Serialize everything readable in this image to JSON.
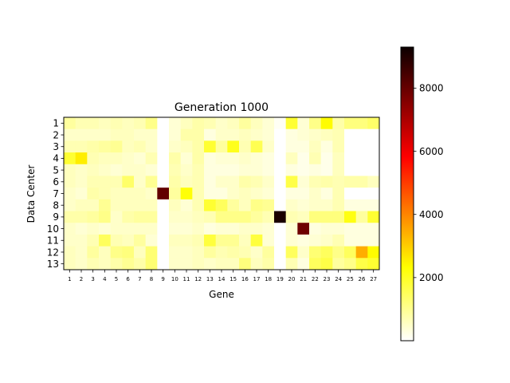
{
  "chart_data": {
    "type": "heatmap",
    "title": "Generation 1000",
    "xlabel": "Gene",
    "ylabel": "Data Center",
    "x_categories": [
      "1",
      "2",
      "3",
      "4",
      "5",
      "6",
      "7",
      "8",
      "9",
      "10",
      "11",
      "12",
      "13",
      "14",
      "15",
      "16",
      "17",
      "18",
      "19",
      "20",
      "21",
      "22",
      "23",
      "24",
      "25",
      "26",
      "27"
    ],
    "y_categories": [
      "1",
      "2",
      "3",
      "4",
      "5",
      "6",
      "7",
      "8",
      "9",
      "10",
      "11",
      "12",
      "13"
    ],
    "colormap": "hot_r",
    "vmin": 0,
    "vmax": 9300,
    "colorbar_ticks": [
      2000,
      4000,
      6000,
      8000
    ],
    "colorbar_tick_labels": [
      "2000",
      "4000",
      "6000",
      "8000"
    ],
    "values": [
      [
        900,
        700,
        700,
        600,
        700,
        600,
        700,
        1100,
        0,
        400,
        600,
        800,
        700,
        500,
        600,
        900,
        600,
        400,
        100,
        1900,
        400,
        1100,
        2400,
        800,
        1200,
        1200,
        1400
      ],
      [
        500,
        500,
        500,
        500,
        600,
        600,
        500,
        500,
        0,
        400,
        800,
        800,
        300,
        500,
        500,
        600,
        500,
        400,
        0,
        300,
        400,
        500,
        600,
        700,
        0,
        0,
        0
      ],
      [
        700,
        700,
        800,
        900,
        1000,
        600,
        700,
        500,
        0,
        500,
        600,
        800,
        1900,
        900,
        2100,
        700,
        1600,
        500,
        0,
        300,
        300,
        600,
        300,
        700,
        0,
        0,
        0
      ],
      [
        1900,
        2600,
        700,
        600,
        600,
        500,
        400,
        700,
        0,
        800,
        400,
        800,
        300,
        400,
        400,
        500,
        400,
        300,
        0,
        600,
        200,
        700,
        200,
        600,
        0,
        0,
        0
      ],
      [
        600,
        500,
        600,
        500,
        400,
        500,
        500,
        400,
        0,
        700,
        500,
        700,
        300,
        300,
        300,
        400,
        400,
        300,
        0,
        300,
        200,
        300,
        200,
        600,
        0,
        0,
        0
      ],
      [
        600,
        500,
        700,
        700,
        700,
        1400,
        500,
        1000,
        0,
        800,
        600,
        700,
        300,
        500,
        500,
        800,
        700,
        500,
        0,
        1700,
        400,
        700,
        800,
        700,
        800,
        800,
        600
      ],
      [
        500,
        400,
        800,
        700,
        600,
        600,
        600,
        500,
        8200,
        900,
        2300,
        700,
        300,
        300,
        500,
        600,
        500,
        400,
        0,
        300,
        300,
        500,
        300,
        700,
        0,
        0,
        0
      ],
      [
        500,
        600,
        600,
        1000,
        600,
        600,
        600,
        600,
        0,
        600,
        400,
        700,
        1900,
        1500,
        900,
        600,
        1100,
        1000,
        0,
        500,
        400,
        500,
        500,
        700,
        300,
        300,
        300
      ],
      [
        800,
        800,
        900,
        1100,
        500,
        800,
        900,
        900,
        0,
        500,
        500,
        600,
        700,
        1100,
        1100,
        1100,
        900,
        700,
        9300,
        700,
        600,
        1200,
        1200,
        1200,
        2200,
        900,
        1900
      ],
      [
        500,
        400,
        500,
        400,
        500,
        500,
        500,
        500,
        0,
        400,
        400,
        500,
        300,
        400,
        400,
        500,
        500,
        400,
        0,
        400,
        8000,
        300,
        400,
        400,
        300,
        300,
        300
      ],
      [
        500,
        500,
        700,
        1500,
        700,
        600,
        900,
        400,
        0,
        600,
        600,
        700,
        1800,
        1000,
        1000,
        600,
        1800,
        400,
        0,
        400,
        300,
        400,
        500,
        700,
        300,
        300,
        300
      ],
      [
        600,
        500,
        900,
        600,
        1100,
        1200,
        600,
        1300,
        0,
        500,
        500,
        600,
        900,
        700,
        800,
        700,
        500,
        900,
        0,
        1500,
        500,
        1300,
        1500,
        1100,
        1500,
        3500,
        2400
      ],
      [
        600,
        500,
        700,
        600,
        800,
        1000,
        800,
        1300,
        0,
        500,
        500,
        600,
        500,
        600,
        600,
        1200,
        600,
        800,
        0,
        700,
        300,
        1500,
        1700,
        900,
        1100,
        1700,
        1900
      ]
    ]
  }
}
